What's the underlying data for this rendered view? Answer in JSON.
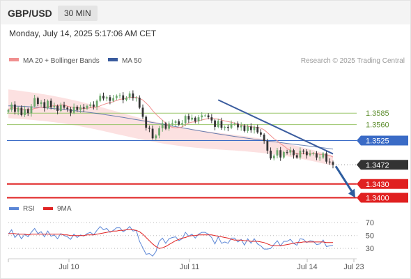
{
  "header": {
    "symbol": "GBP/USD",
    "timeframe": "30 MIN"
  },
  "datetime": "Monday, July 14, 2025 5:17:06 AM CET",
  "legend": {
    "bollinger": {
      "label": "MA 20 + Bollinger Bands",
      "color": "#f08f8f"
    },
    "ma50": {
      "label": "MA 50",
      "color": "#3a5c9e"
    },
    "rsi": {
      "label": "RSI",
      "color": "#5b86d6"
    },
    "rsi_ma": {
      "label": "9MA",
      "color": "#e02424"
    }
  },
  "credit": "Research © 2025 Trading Central",
  "colors": {
    "up": "#6ca86c",
    "down": "#333333",
    "resistance": "#9ac56a",
    "pivot": "#3a6bc6",
    "support": "#e02020",
    "last": "#333333",
    "trendline": "#3a5c9e",
    "arrow": "#2e5d9f"
  },
  "chart_data": [
    {
      "type": "candlestick",
      "title": "GBP/USD",
      "timeframe": "30 MIN",
      "x_ticks": [
        "Jul 10",
        "Jul 11",
        "Jul 14",
        "Jul 23"
      ],
      "ylim": [
        1.339,
        1.368
      ],
      "levels": [
        {
          "value": 1.3585,
          "label": "1.3585",
          "kind": "resistance"
        },
        {
          "value": 1.356,
          "label": "1.3560",
          "kind": "resistance"
        },
        {
          "value": 1.3525,
          "label": "1.3525",
          "kind": "pivot"
        },
        {
          "value": 1.3472,
          "label": "1.3472",
          "kind": "last"
        },
        {
          "value": 1.343,
          "label": "1.3430",
          "kind": "support"
        },
        {
          "value": 1.34,
          "label": "1.3400",
          "kind": "support"
        }
      ],
      "close": [
        1.3592,
        1.3604,
        1.3588,
        1.3597,
        1.3581,
        1.3594,
        1.3585,
        1.36,
        1.3618,
        1.3605,
        1.3609,
        1.3596,
        1.3612,
        1.3598,
        1.3601,
        1.359,
        1.3603,
        1.3597,
        1.3594,
        1.3586,
        1.3599,
        1.3592,
        1.3598,
        1.3595,
        1.3601,
        1.3604,
        1.3599,
        1.3612,
        1.3623,
        1.3617,
        1.362,
        1.3612,
        1.3618,
        1.3623,
        1.3624,
        1.3614,
        1.3619,
        1.3628,
        1.3618,
        1.3619,
        1.3597,
        1.3577,
        1.3553,
        1.3551,
        1.353,
        1.3536,
        1.3552,
        1.3563,
        1.3551,
        1.3562,
        1.3564,
        1.3567,
        1.356,
        1.3563,
        1.3579,
        1.3571,
        1.3575,
        1.3567,
        1.3576,
        1.358,
        1.358,
        1.3576,
        1.3569,
        1.3555,
        1.3568,
        1.3553,
        1.3555,
        1.3553,
        1.3562,
        1.3562,
        1.3554,
        1.3558,
        1.3546,
        1.3556,
        1.3548,
        1.3555,
        1.3543,
        1.3538,
        1.3524,
        1.3503,
        1.3486,
        1.3492,
        1.3504,
        1.3488,
        1.35,
        1.3499,
        1.3504,
        1.3493,
        1.3488,
        1.3503,
        1.3501,
        1.3493,
        1.3497,
        1.3497,
        1.3488,
        1.3488,
        1.3497,
        1.3479,
        1.3478,
        1.3472
      ],
      "bollinger_band": {
        "upper_start": 1.3637,
        "upper_end": 1.3492,
        "lower_start": 1.3574,
        "lower_end": 1.347
      },
      "ma50": {
        "start": 1.3601,
        "end": 1.3504
      },
      "trendline": {
        "from": 1.3614,
        "to": 1.3496
      },
      "projection": {
        "from": 1.3472,
        "to": 1.34
      }
    },
    {
      "type": "line",
      "title": "RSI",
      "ylim": [
        15,
        80
      ],
      "y_ticks": [
        70,
        50,
        30
      ],
      "series": [
        {
          "name": "RSI",
          "values": [
            52,
            59,
            47,
            53,
            45,
            52,
            48,
            55,
            61,
            53,
            56,
            48,
            57,
            49,
            51,
            45,
            53,
            50,
            48,
            44,
            52,
            47,
            51,
            49,
            53,
            55,
            51,
            58,
            64,
            59,
            61,
            55,
            58,
            62,
            62,
            56,
            59,
            64,
            57,
            58,
            41,
            31,
            21,
            22,
            18,
            25,
            41,
            46,
            38,
            45,
            47,
            48,
            42,
            45,
            55,
            49,
            52,
            46,
            52,
            55,
            55,
            52,
            47,
            37,
            48,
            38,
            40,
            38,
            46,
            46,
            40,
            44,
            35,
            45,
            38,
            45,
            37,
            34,
            29,
            29,
            30,
            36,
            42,
            34,
            41,
            41,
            44,
            38,
            35,
            45,
            44,
            39,
            42,
            41,
            36,
            37,
            43,
            33,
            34,
            35
          ]
        },
        {
          "name": "9MA",
          "values": [
            53,
            53,
            53,
            52,
            52,
            52,
            51,
            52,
            52,
            52,
            52,
            52,
            52,
            52,
            52,
            52,
            52,
            51,
            51,
            50,
            50,
            50,
            50,
            50,
            51,
            51,
            51,
            52,
            53,
            54,
            55,
            56,
            57,
            57,
            58,
            58,
            59,
            59,
            59,
            58,
            56,
            52,
            47,
            42,
            37,
            33,
            30,
            31,
            33,
            36,
            39,
            42,
            44,
            46,
            47,
            49,
            50,
            50,
            51,
            51,
            51,
            51,
            51,
            50,
            49,
            48,
            47,
            46,
            44,
            43,
            43,
            43,
            42,
            42,
            41,
            41,
            41,
            40,
            39,
            37,
            35,
            34,
            34,
            34,
            35,
            36,
            37,
            38,
            39,
            39,
            40,
            40,
            40,
            40,
            40,
            40,
            40,
            39,
            39,
            39
          ]
        }
      ]
    }
  ]
}
